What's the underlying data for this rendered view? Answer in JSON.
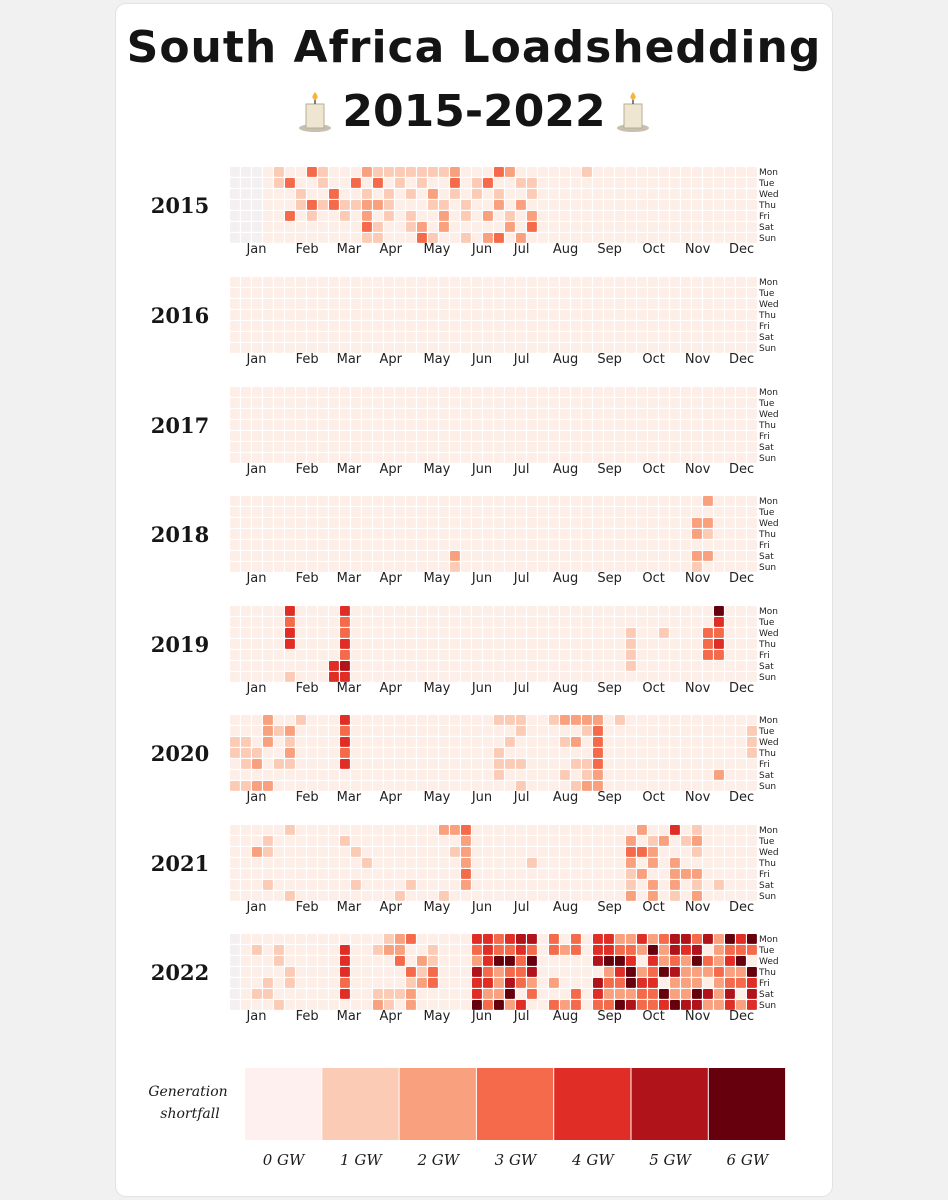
{
  "title": "South Africa Loadshedding",
  "subtitle": "2015-2022",
  "chart_data": {
    "type": "heatmap",
    "title": "South Africa Loadshedding 2015-2022",
    "years": [
      "2015",
      "2016",
      "2017",
      "2018",
      "2019",
      "2020",
      "2021",
      "2022"
    ],
    "weekdays": [
      "Mon",
      "Tue",
      "Wed",
      "Thu",
      "Fri",
      "Sat",
      "Sun"
    ],
    "month_axes": [
      [
        "Jan",
        "Feb",
        "Mar",
        "Apr",
        "May",
        "Jun",
        "Jul",
        "Aug",
        "Sep",
        "Oct",
        "Nov",
        "Dec"
      ],
      [
        "Jan",
        "Feb",
        "Mar",
        "Apr",
        "May",
        "Jun",
        "Jul",
        "Aug",
        "Sep",
        "Oct",
        "Nov",
        "Dec"
      ],
      [
        "Jan",
        "Feb",
        "Mar",
        "Apr",
        "May",
        "Jun",
        "Jul",
        "Aug",
        "Sep",
        "Oct",
        "Nov",
        "Dec"
      ],
      [
        "Jan",
        "Feb",
        "Mar",
        "Apr",
        "May",
        "Jun",
        "Jul",
        "Aug",
        "Sep",
        "Oct",
        "Nov",
        "Dec"
      ],
      [
        "Jan",
        "Feb",
        "Mar",
        "Apr",
        "May",
        "Jun",
        "Jul",
        "Aug",
        "Sep",
        "Oct",
        "Nov",
        "Dec"
      ],
      [
        "Jan",
        "Feb",
        "Mar",
        "Apr",
        "May",
        "Jun",
        "Jul",
        "Aug",
        "Sep",
        "Oct",
        "Nov",
        "Dec"
      ],
      [
        "Jan",
        "Feb",
        "Mar",
        "Apr",
        "May",
        "Jun",
        "Jul",
        "Aug",
        "Sep",
        "Oct",
        "Nov",
        "Dec"
      ],
      [
        "Jan",
        "Feb",
        "Mar",
        "Apr",
        "May",
        "Jun",
        "Jul",
        "Aug",
        "Sep",
        "Oct",
        "Nov",
        "Dec"
      ]
    ],
    "value_unit": "GW generation shortfall",
    "activity_summary": {
      "2015": "frequent 1-3 GW shortfalls Feb-Aug, isolated day in Sep",
      "2016": "no loadshedding",
      "2017": "no loadshedding",
      "2018": "brief events mid-Jun and late Nov-early Dec",
      "2019": "events Feb, Mar (up to 4-5 GW), Oct-Dec peak 6 GW in Dec",
      "2020": "events Jan-Mar, Jul-Aug, Oct, Dec",
      "2021": "scattered events throughout year, cluster Oct-Nov",
      "2022": "heavy loadshedding Jun-Jul and Sep-Dec, peaks 5-6 GW"
    },
    "legend": {
      "title": "Generation shortfall",
      "ticks": [
        "0 GW",
        "1 GW",
        "2 GW",
        "3 GW",
        "4 GW",
        "5 GW",
        "6 GW"
      ],
      "colors": [
        "#fdf0ee",
        "#fbcbb6",
        "#f9a07f",
        "#f56a4a",
        "#e02e26",
        "#b1131b",
        "#67000d"
      ]
    },
    "base_color": "#fdeee8",
    "empty_color": "#f4f0f2"
  }
}
